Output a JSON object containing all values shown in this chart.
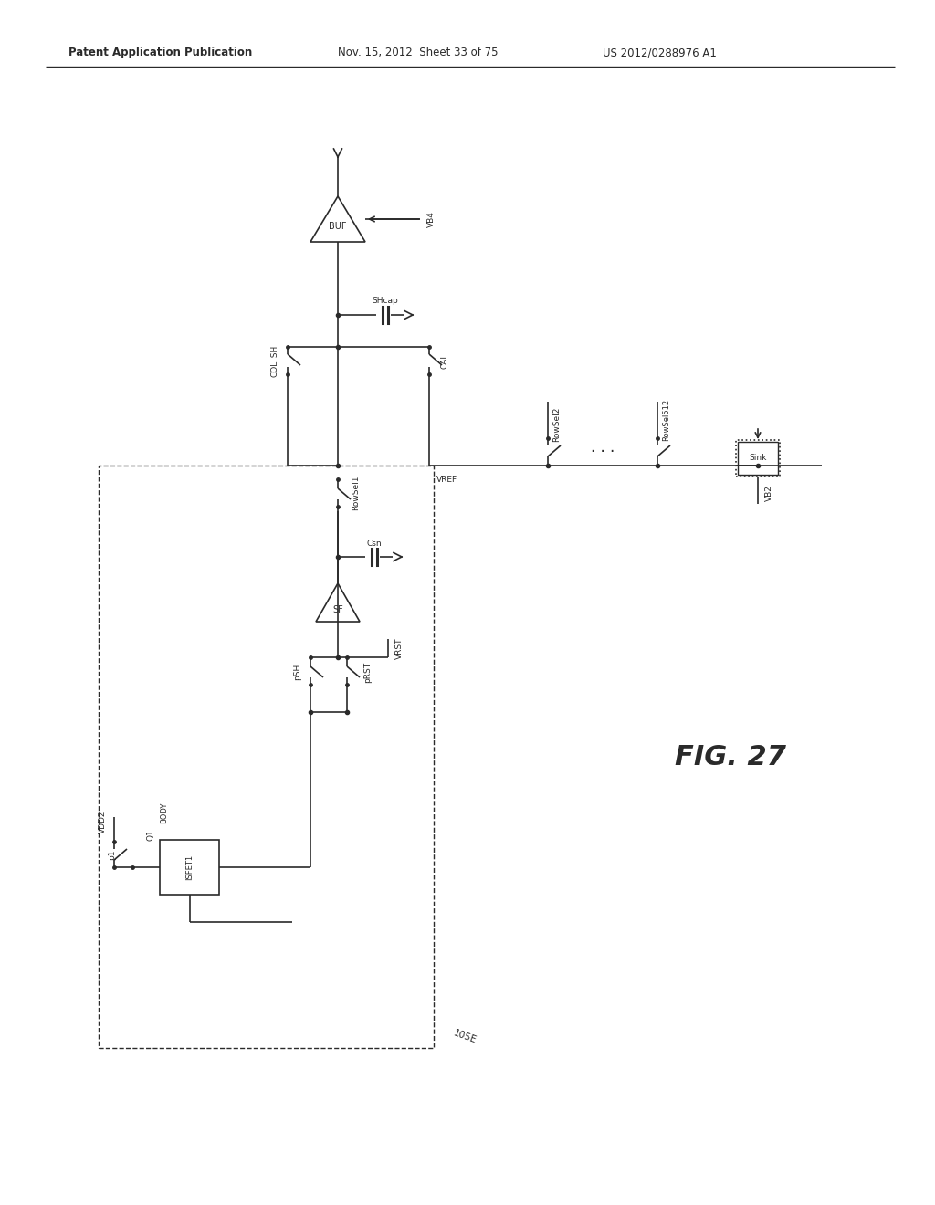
{
  "header_left": "Patent Application Publication",
  "header_mid": "Nov. 15, 2012  Sheet 33 of 75",
  "header_right": "US 2012/0288976 A1",
  "figure_label": "FIG. 27",
  "bg": "#ffffff",
  "lc": "#2a2a2a",
  "fig_width": 10.24,
  "fig_height": 13.2,
  "dpi": 100
}
